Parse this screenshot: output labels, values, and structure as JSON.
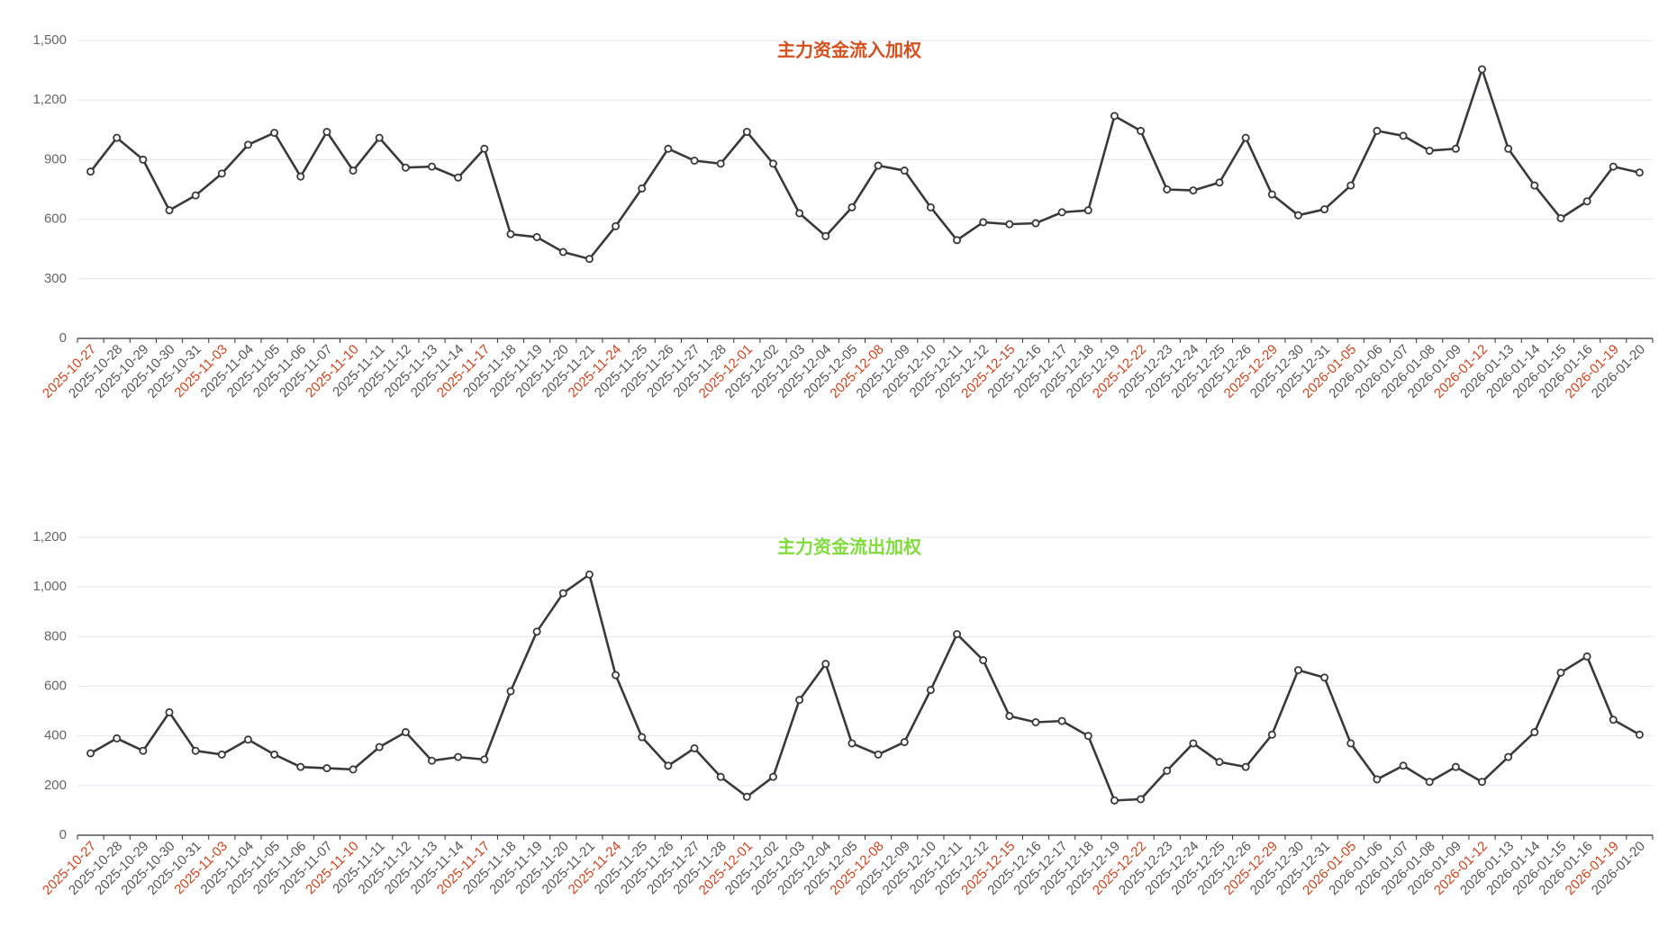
{
  "chart_data": [
    {
      "type": "line",
      "title": "主力资金流入加权",
      "title_color": "#d4501c",
      "color": "#3a3a3a",
      "label_color": "#555555",
      "monday_label_color": "#d4401a",
      "grid": true,
      "categories": [
        "2025-10-27",
        "2025-10-28",
        "2025-10-29",
        "2025-10-30",
        "2025-10-31",
        "2025-11-03",
        "2025-11-04",
        "2025-11-05",
        "2025-11-06",
        "2025-11-07",
        "2025-11-10",
        "2025-11-11",
        "2025-11-12",
        "2025-11-13",
        "2025-11-14",
        "2025-11-17",
        "2025-11-18",
        "2025-11-19",
        "2025-11-20",
        "2025-11-21",
        "2025-11-24",
        "2025-11-25",
        "2025-11-26",
        "2025-11-27",
        "2025-11-28",
        "2025-12-01",
        "2025-12-02",
        "2025-12-03",
        "2025-12-04",
        "2025-12-05",
        "2025-12-08",
        "2025-12-09",
        "2025-12-10",
        "2025-12-11",
        "2025-12-12",
        "2025-12-15",
        "2025-12-16",
        "2025-12-17",
        "2025-12-18",
        "2025-12-19",
        "2025-12-22",
        "2025-12-23",
        "2025-12-24",
        "2025-12-25",
        "2025-12-26",
        "2025-12-29",
        "2025-12-30",
        "2025-12-31",
        "2026-01-05",
        "2026-01-06",
        "2026-01-07",
        "2026-01-08",
        "2026-01-09",
        "2026-01-12",
        "2026-01-13",
        "2026-01-14",
        "2026-01-15",
        "2026-01-16",
        "2026-01-19",
        "2026-01-20"
      ],
      "values": [
        840,
        1010,
        900,
        645,
        720,
        830,
        975,
        1035,
        815,
        1040,
        845,
        1010,
        860,
        865,
        810,
        955,
        525,
        510,
        435,
        400,
        565,
        755,
        955,
        895,
        880,
        1040,
        880,
        630,
        515,
        660,
        870,
        845,
        660,
        495,
        585,
        575,
        580,
        635,
        645,
        1120,
        1045,
        750,
        745,
        785,
        1010,
        725,
        620,
        650,
        770,
        1045,
        1020,
        945,
        955,
        1355,
        955,
        770,
        605,
        690,
        865,
        835
      ],
      "ylim": [
        0,
        1500
      ],
      "yticks": [
        0,
        300,
        600,
        900,
        {
          "value": 1200,
          "label": "1,200"
        },
        {
          "value": 1500,
          "label": "1,500"
        }
      ]
    },
    {
      "type": "line",
      "title": "主力资金流出加权",
      "title_color": "#7fdc3c",
      "color": "#3a3a3a",
      "label_color": "#555555",
      "monday_label_color": "#d4401a",
      "grid": true,
      "categories": [
        "2025-10-27",
        "2025-10-28",
        "2025-10-29",
        "2025-10-30",
        "2025-10-31",
        "2025-11-03",
        "2025-11-04",
        "2025-11-05",
        "2025-11-06",
        "2025-11-07",
        "2025-11-10",
        "2025-11-11",
        "2025-11-12",
        "2025-11-13",
        "2025-11-14",
        "2025-11-17",
        "2025-11-18",
        "2025-11-19",
        "2025-11-20",
        "2025-11-21",
        "2025-11-24",
        "2025-11-25",
        "2025-11-26",
        "2025-11-27",
        "2025-11-28",
        "2025-12-01",
        "2025-12-02",
        "2025-12-03",
        "2025-12-04",
        "2025-12-05",
        "2025-12-08",
        "2025-12-09",
        "2025-12-10",
        "2025-12-11",
        "2025-12-12",
        "2025-12-15",
        "2025-12-16",
        "2025-12-17",
        "2025-12-18",
        "2025-12-19",
        "2025-12-22",
        "2025-12-23",
        "2025-12-24",
        "2025-12-25",
        "2025-12-26",
        "2025-12-29",
        "2025-12-30",
        "2025-12-31",
        "2026-01-05",
        "2026-01-06",
        "2026-01-07",
        "2026-01-08",
        "2026-01-09",
        "2026-01-12",
        "2026-01-13",
        "2026-01-14",
        "2026-01-15",
        "2026-01-16",
        "2026-01-19",
        "2026-01-20"
      ],
      "values": [
        330,
        390,
        340,
        495,
        340,
        325,
        385,
        325,
        275,
        270,
        265,
        355,
        415,
        300,
        315,
        305,
        580,
        820,
        975,
        1050,
        645,
        395,
        280,
        350,
        235,
        155,
        235,
        545,
        690,
        370,
        325,
        375,
        585,
        810,
        705,
        480,
        455,
        460,
        400,
        140,
        145,
        260,
        370,
        295,
        275,
        405,
        665,
        635,
        370,
        225,
        280,
        215,
        275,
        215,
        315,
        415,
        655,
        720,
        465,
        405
      ],
      "ylim": [
        0,
        1200
      ],
      "yticks": [
        0,
        200,
        400,
        600,
        800,
        {
          "value": 1000,
          "label": "1,000"
        },
        {
          "value": 1200,
          "label": "1,200"
        }
      ]
    }
  ]
}
